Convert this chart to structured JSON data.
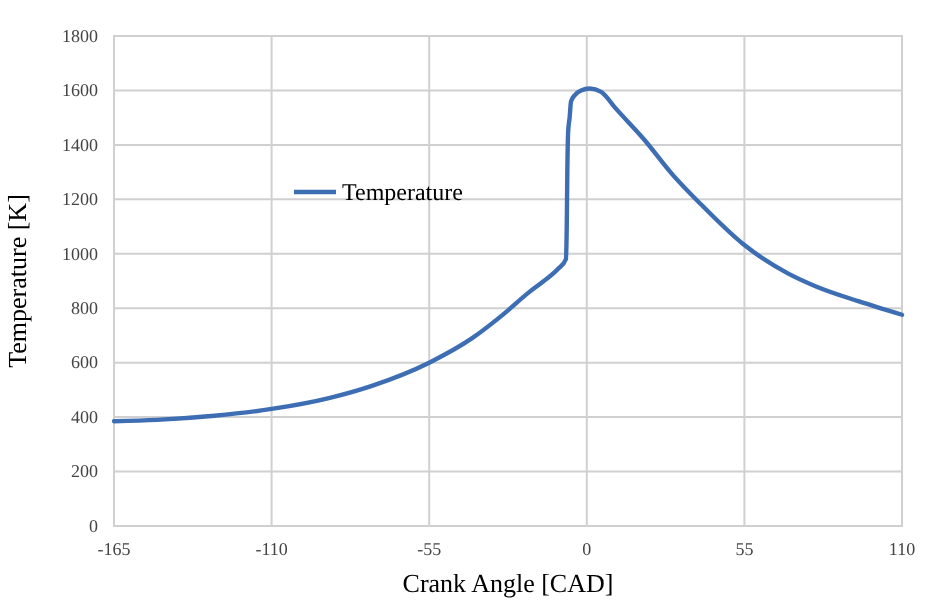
{
  "chart_data": {
    "type": "line",
    "xlabel": "Crank Angle [CAD]",
    "ylabel": "Temperature [K]",
    "xlim": [
      -165,
      110
    ],
    "xticks": [
      -165,
      -110,
      -55,
      0,
      55,
      110
    ],
    "ylim": [
      0,
      1800
    ],
    "yticks": [
      0,
      200,
      400,
      600,
      800,
      1000,
      1200,
      1400,
      1600,
      1800
    ],
    "grid": true,
    "legend": "top left",
    "series": [
      {
        "name": "Temperature",
        "color": "#3d6eb4",
        "x": [
          -165,
          -150,
          -130,
          -110,
          -90,
          -75,
          -55,
          -40,
          -30,
          -20,
          -15,
          -10,
          -7.3,
          -7,
          -6.8,
          -6.5,
          -6,
          -5.5,
          -4,
          -2,
          1,
          5,
          10,
          20,
          30,
          40,
          55,
          70,
          80,
          95,
          110
        ],
        "values": [
          385,
          390,
          405,
          430,
          470,
          515,
          600,
          690,
          770,
          860,
          900,
          945,
          980,
          1100,
          1300,
          1450,
          1500,
          1560,
          1585,
          1600,
          1607,
          1595,
          1535,
          1420,
          1290,
          1180,
          1032,
          929,
          880,
          825,
          776
        ]
      }
    ]
  }
}
